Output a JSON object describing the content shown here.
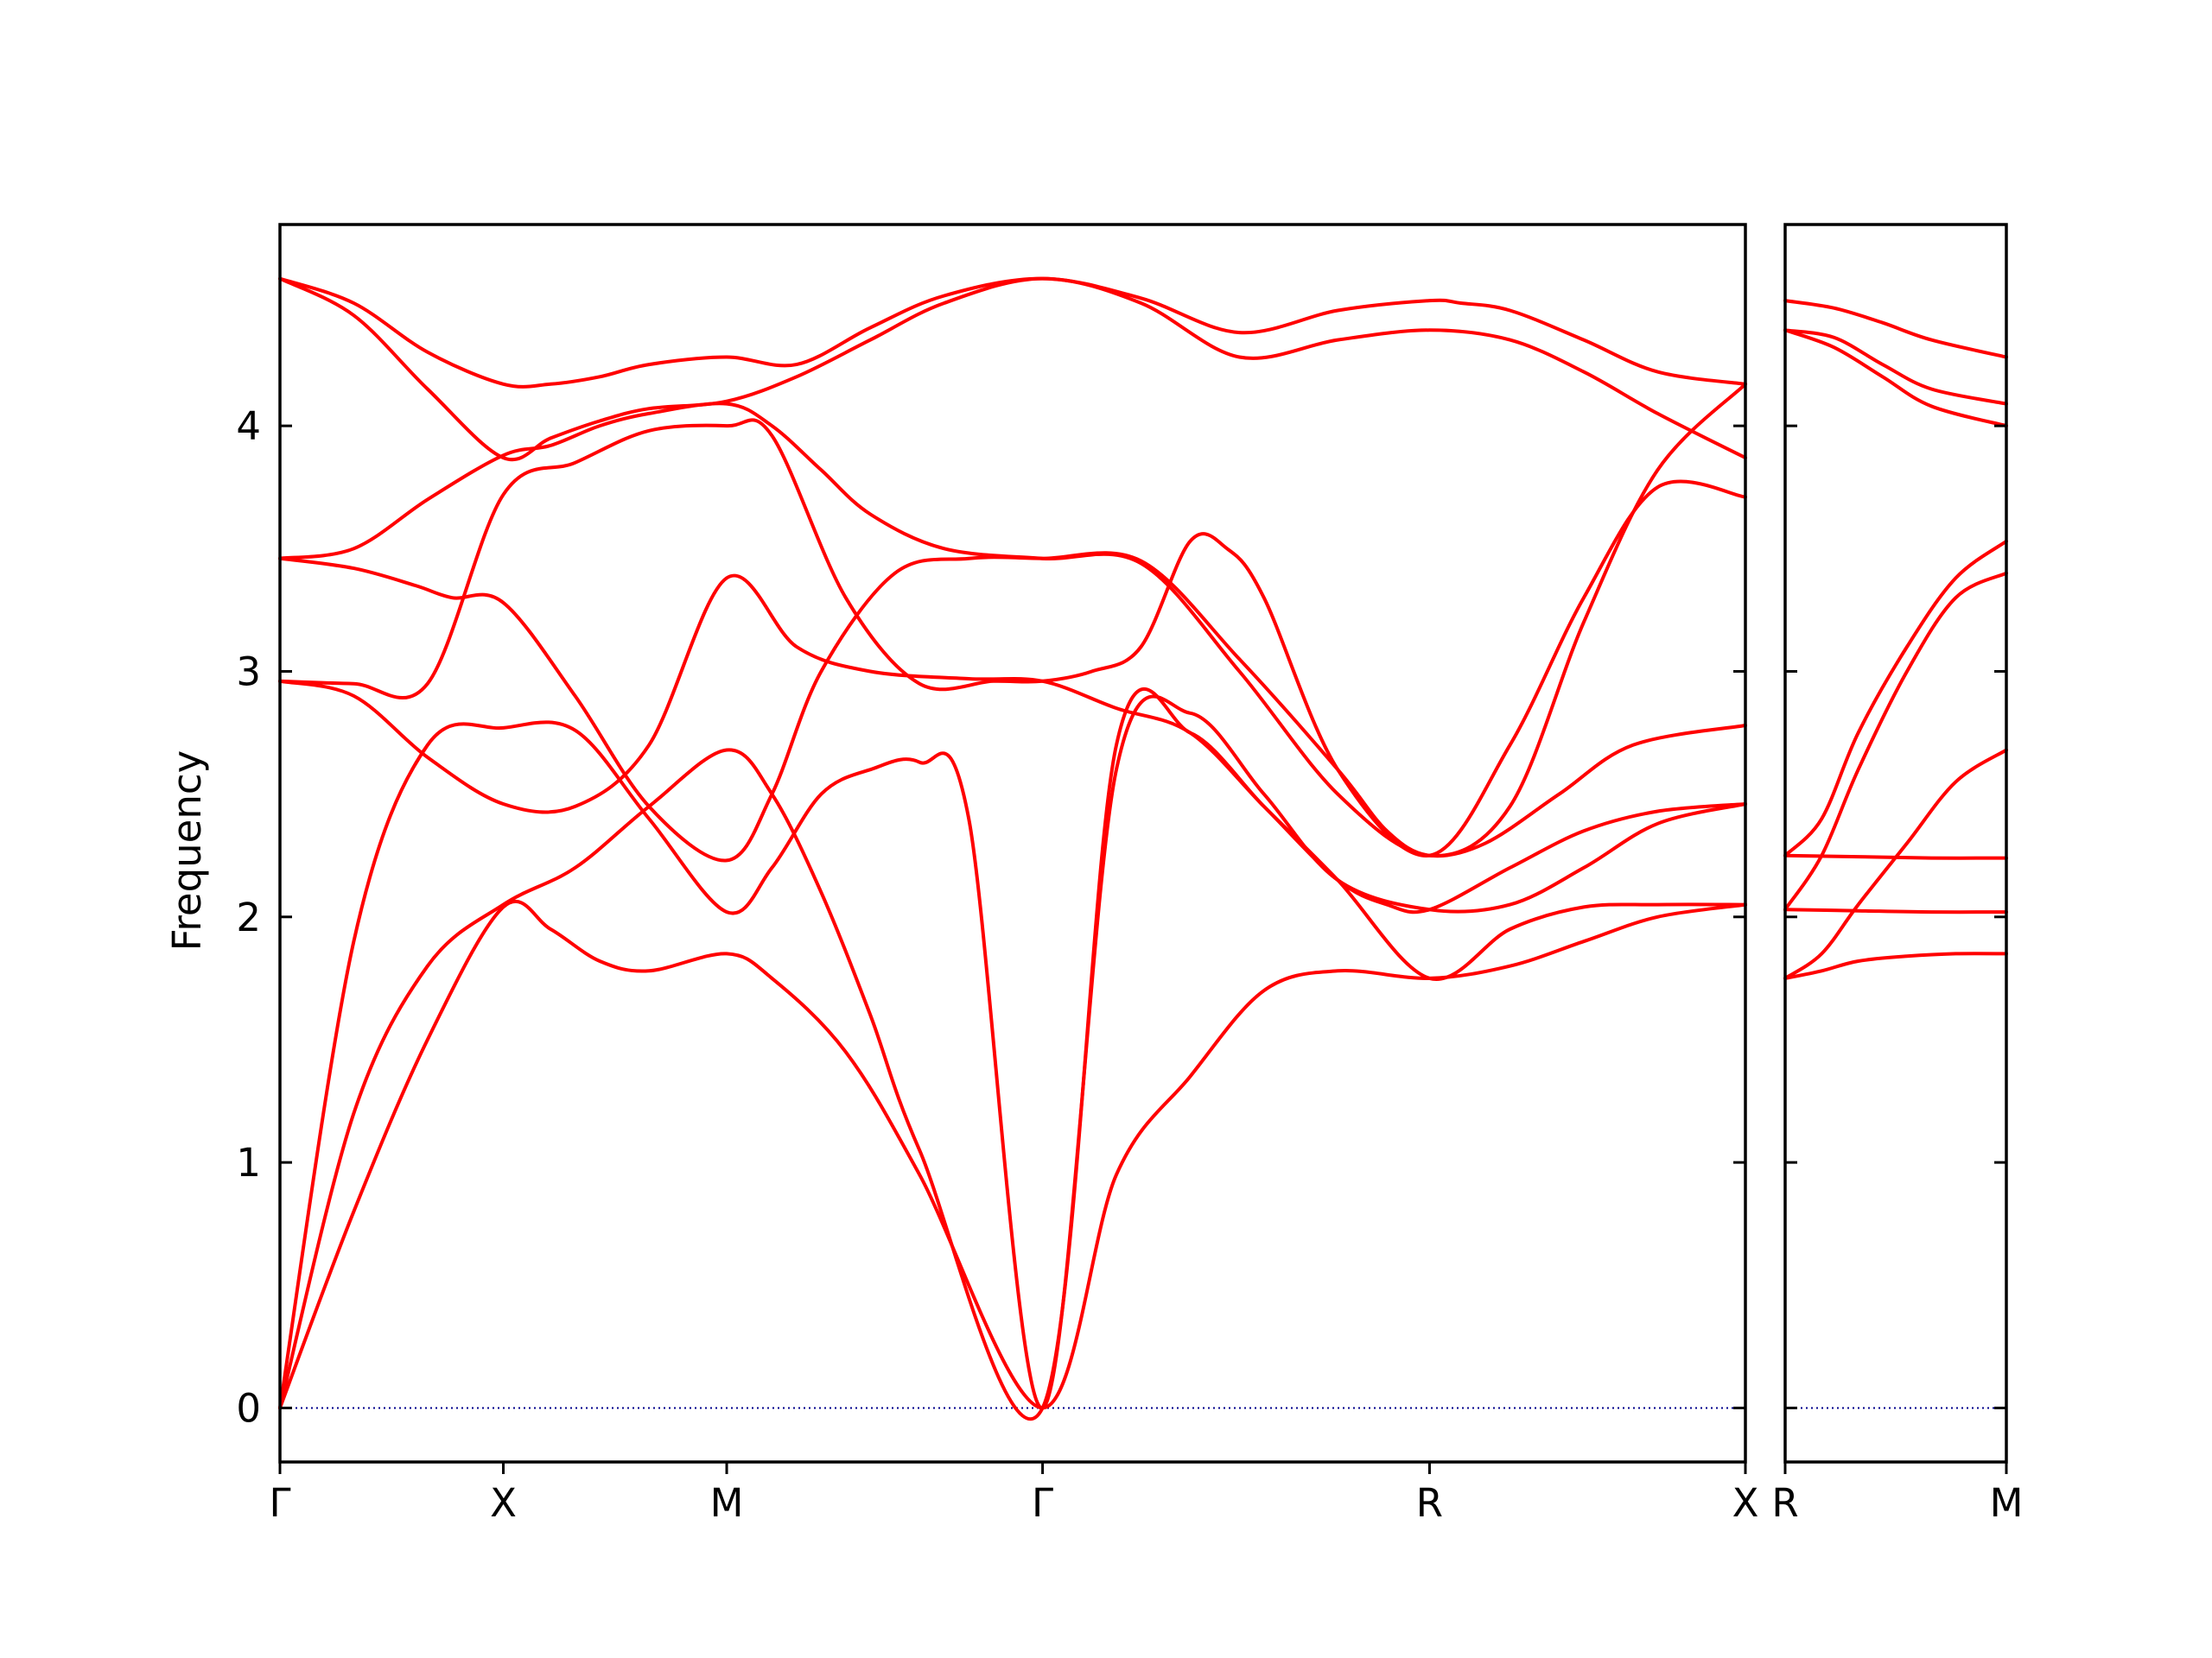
{
  "chart_data": {
    "type": "line",
    "title": "",
    "xlabel": "",
    "ylabel": "Frequency",
    "ylim": [
      -0.22,
      4.82
    ],
    "yticks": [
      0,
      1,
      2,
      3,
      4
    ],
    "grid": false,
    "colors": {
      "bands": "#ff0000",
      "zero_line": "#00008b"
    },
    "panels": [
      {
        "xticks": [
          {
            "pos": 0,
            "label": "Γ"
          },
          {
            "pos": 0.908,
            "label": "X"
          },
          {
            "pos": 1.816,
            "label": "M"
          },
          {
            "pos": 3.1,
            "label": "Γ"
          },
          {
            "pos": 4.673,
            "label": "R"
          },
          {
            "pos": 5.957,
            "label": "X"
          }
        ],
        "xlim": [
          0,
          5.957
        ],
        "series": [
          {
            "x": [
              0,
              0.3,
              0.6,
              0.908,
              1.1,
              1.3,
              1.5,
              1.816,
              2.1,
              2.4,
              2.7,
              3.1,
              3.5,
              3.9,
              4.3,
              4.673,
              4.8,
              5.0,
              5.3,
              5.6,
              5.957
            ],
            "y": [
              4.6,
              4.5,
              4.3,
              4.17,
              4.17,
              4.2,
              4.25,
              4.28,
              4.25,
              4.4,
              4.53,
              4.6,
              4.52,
              4.38,
              4.47,
              4.51,
              4.5,
              4.47,
              4.35,
              4.22,
              4.17
            ]
          },
          {
            "x": [
              0,
              0.3,
              0.6,
              0.908,
              1.1,
              1.3,
              1.5,
              1.816,
              2.1,
              2.4,
              2.7,
              3.1,
              3.5,
              3.9,
              4.3,
              4.673,
              5.0,
              5.3,
              5.6,
              5.957
            ],
            "y": [
              4.6,
              4.45,
              4.15,
              3.87,
              3.95,
              4.02,
              4.07,
              4.1,
              4.2,
              4.35,
              4.5,
              4.6,
              4.5,
              4.28,
              4.35,
              4.39,
              4.35,
              4.22,
              4.05,
              3.87
            ]
          },
          {
            "x": [
              0,
              0.3,
              0.6,
              0.908,
              1.1,
              1.3,
              1.5,
              1.816,
              2.0,
              2.2,
              2.4,
              2.7,
              3.1,
              3.5,
              3.9,
              4.3,
              4.673,
              5.0,
              5.3,
              5.6,
              5.957
            ],
            "y": [
              3.46,
              3.5,
              3.7,
              3.88,
              3.92,
              4.0,
              4.05,
              4.09,
              4.0,
              3.82,
              3.64,
              3.5,
              3.46,
              3.44,
              3.0,
              2.5,
              2.25,
              2.45,
              3.2,
              3.82,
              4.17
            ]
          },
          {
            "x": [
              0,
              0.3,
              0.55,
              0.7,
              0.908,
              1.2,
              1.5,
              1.816,
              2.0,
              2.2,
              2.5,
              2.8,
              3.1,
              3.5,
              3.9,
              4.3,
              4.5,
              4.673,
              4.9,
              5.2,
              5.5,
              5.957
            ],
            "y": [
              3.46,
              3.42,
              3.35,
              3.3,
              3.28,
              2.9,
              2.45,
              2.23,
              2.5,
              3.0,
              3.4,
              3.46,
              3.46,
              3.45,
              3.05,
              2.6,
              2.35,
              2.25,
              2.3,
              2.5,
              2.7,
              2.78
            ]
          },
          {
            "x": [
              0,
              0.3,
              0.6,
              0.908,
              1.2,
              1.5,
              1.816,
              2.0,
              2.3,
              2.6,
              2.9,
              3.1,
              3.3,
              3.5,
              3.7,
              3.85,
              4.0,
              4.3,
              4.673,
              5.0,
              5.3,
              5.6,
              5.957
            ],
            "y": [
              2.96,
              2.95,
              2.95,
              3.72,
              3.85,
              3.98,
              4.0,
              3.96,
              3.3,
              2.95,
              2.96,
              2.96,
              3.0,
              3.1,
              3.53,
              3.5,
              3.3,
              2.6,
              2.25,
              2.7,
              3.3,
              3.75,
              3.71
            ]
          },
          {
            "x": [
              0,
              0.3,
              0.6,
              0.908,
              1.2,
              1.5,
              1.816,
              2.1,
              2.4,
              2.8,
              3.1,
              3.4,
              3.7,
              4.0,
              4.3,
              4.5,
              4.673,
              5.0,
              5.3,
              5.6,
              5.957
            ],
            "y": [
              2.96,
              2.9,
              2.65,
              2.46,
              2.45,
              2.7,
              3.38,
              3.1,
              3.0,
              2.97,
              2.96,
              2.85,
              2.75,
              2.45,
              2.15,
              2.05,
              2.03,
              2.2,
              2.35,
              2.43,
              2.46
            ]
          },
          {
            "x": [
              0,
              0.3,
              0.6,
              0.908,
              1.2,
              1.5,
              1.816,
              2.0,
              2.2,
              2.4,
              2.6,
              2.8,
              3.1,
              3.4,
              3.7,
              4.0,
              4.3,
              4.673,
              5.0,
              5.3,
              5.6,
              5.957
            ],
            "y": [
              0,
              1.9,
              2.7,
              2.77,
              2.76,
              2.4,
              2.02,
              2.2,
              2.5,
              2.6,
              2.63,
              2.4,
              0,
              2.6,
              2.83,
              2.5,
              2.15,
              2.03,
              2.05,
              2.2,
              2.38,
              2.46
            ]
          },
          {
            "x": [
              0,
              0.3,
              0.6,
              0.908,
              1.2,
              1.5,
              1.816,
              2.0,
              2.2,
              2.4,
              2.6,
              3.1,
              3.4,
              3.7,
              4.0,
              4.3,
              4.673,
              5.0,
              5.3,
              5.6,
              5.957
            ],
            "y": [
              0,
              1.2,
              1.8,
              2.05,
              2.2,
              2.45,
              2.68,
              2.5,
              2.1,
              1.6,
              1.05,
              0,
              2.7,
              2.75,
              2.45,
              2.15,
              1.75,
              1.95,
              2.04,
              2.05,
              2.05
            ]
          },
          {
            "x": [
              0,
              0.3,
              0.6,
              0.908,
              1.1,
              1.3,
              1.5,
              1.816,
              2.0,
              2.3,
              2.6,
              3.1,
              3.4,
              3.7,
              4.0,
              4.3,
              4.673,
              5.0,
              5.3,
              5.6,
              5.957
            ],
            "y": [
              0,
              0.8,
              1.5,
              2.04,
              1.95,
              1.82,
              1.78,
              1.85,
              1.75,
              1.45,
              0.95,
              0,
              0.95,
              1.35,
              1.7,
              1.78,
              1.75,
              1.8,
              1.9,
              2.0,
              2.05
            ]
          }
        ]
      },
      {
        "xticks": [
          {
            "pos": 0,
            "label": "R"
          },
          {
            "pos": 0.908,
            "label": "M"
          }
        ],
        "xlim": [
          0,
          0.908
        ],
        "series": [
          {
            "x": [
              0,
              0.2,
              0.4,
              0.6,
              0.908
            ],
            "y": [
              4.51,
              4.48,
              4.42,
              4.35,
              4.28
            ]
          },
          {
            "x": [
              0,
              0.2,
              0.4,
              0.6,
              0.908
            ],
            "y": [
              4.39,
              4.36,
              4.25,
              4.15,
              4.09
            ]
          },
          {
            "x": [
              0,
              0.2,
              0.4,
              0.6,
              0.908
            ],
            "y": [
              4.39,
              4.32,
              4.2,
              4.08,
              4.0
            ]
          },
          {
            "x": [
              0,
              0.15,
              0.3,
              0.5,
              0.7,
              0.908
            ],
            "y": [
              2.25,
              2.4,
              2.75,
              3.1,
              3.38,
              3.53
            ]
          },
          {
            "x": [
              0,
              0.15,
              0.3,
              0.5,
              0.7,
              0.908
            ],
            "y": [
              2.03,
              2.25,
              2.6,
              3.0,
              3.3,
              3.4
            ]
          },
          {
            "x": [
              0,
              0.3,
              0.6,
              0.908
            ],
            "y": [
              2.25,
              2.245,
              2.24,
              2.24
            ]
          },
          {
            "x": [
              0,
              0.3,
              0.6,
              0.908
            ],
            "y": [
              2.03,
              2.025,
              2.02,
              2.02
            ]
          },
          {
            "x": [
              0,
              0.15,
              0.3,
              0.5,
              0.7,
              0.908
            ],
            "y": [
              1.75,
              1.85,
              2.05,
              2.3,
              2.55,
              2.68
            ]
          },
          {
            "x": [
              0,
              0.15,
              0.3,
              0.5,
              0.7,
              0.908
            ],
            "y": [
              1.75,
              1.78,
              1.82,
              1.84,
              1.85,
              1.85
            ]
          }
        ]
      }
    ]
  }
}
